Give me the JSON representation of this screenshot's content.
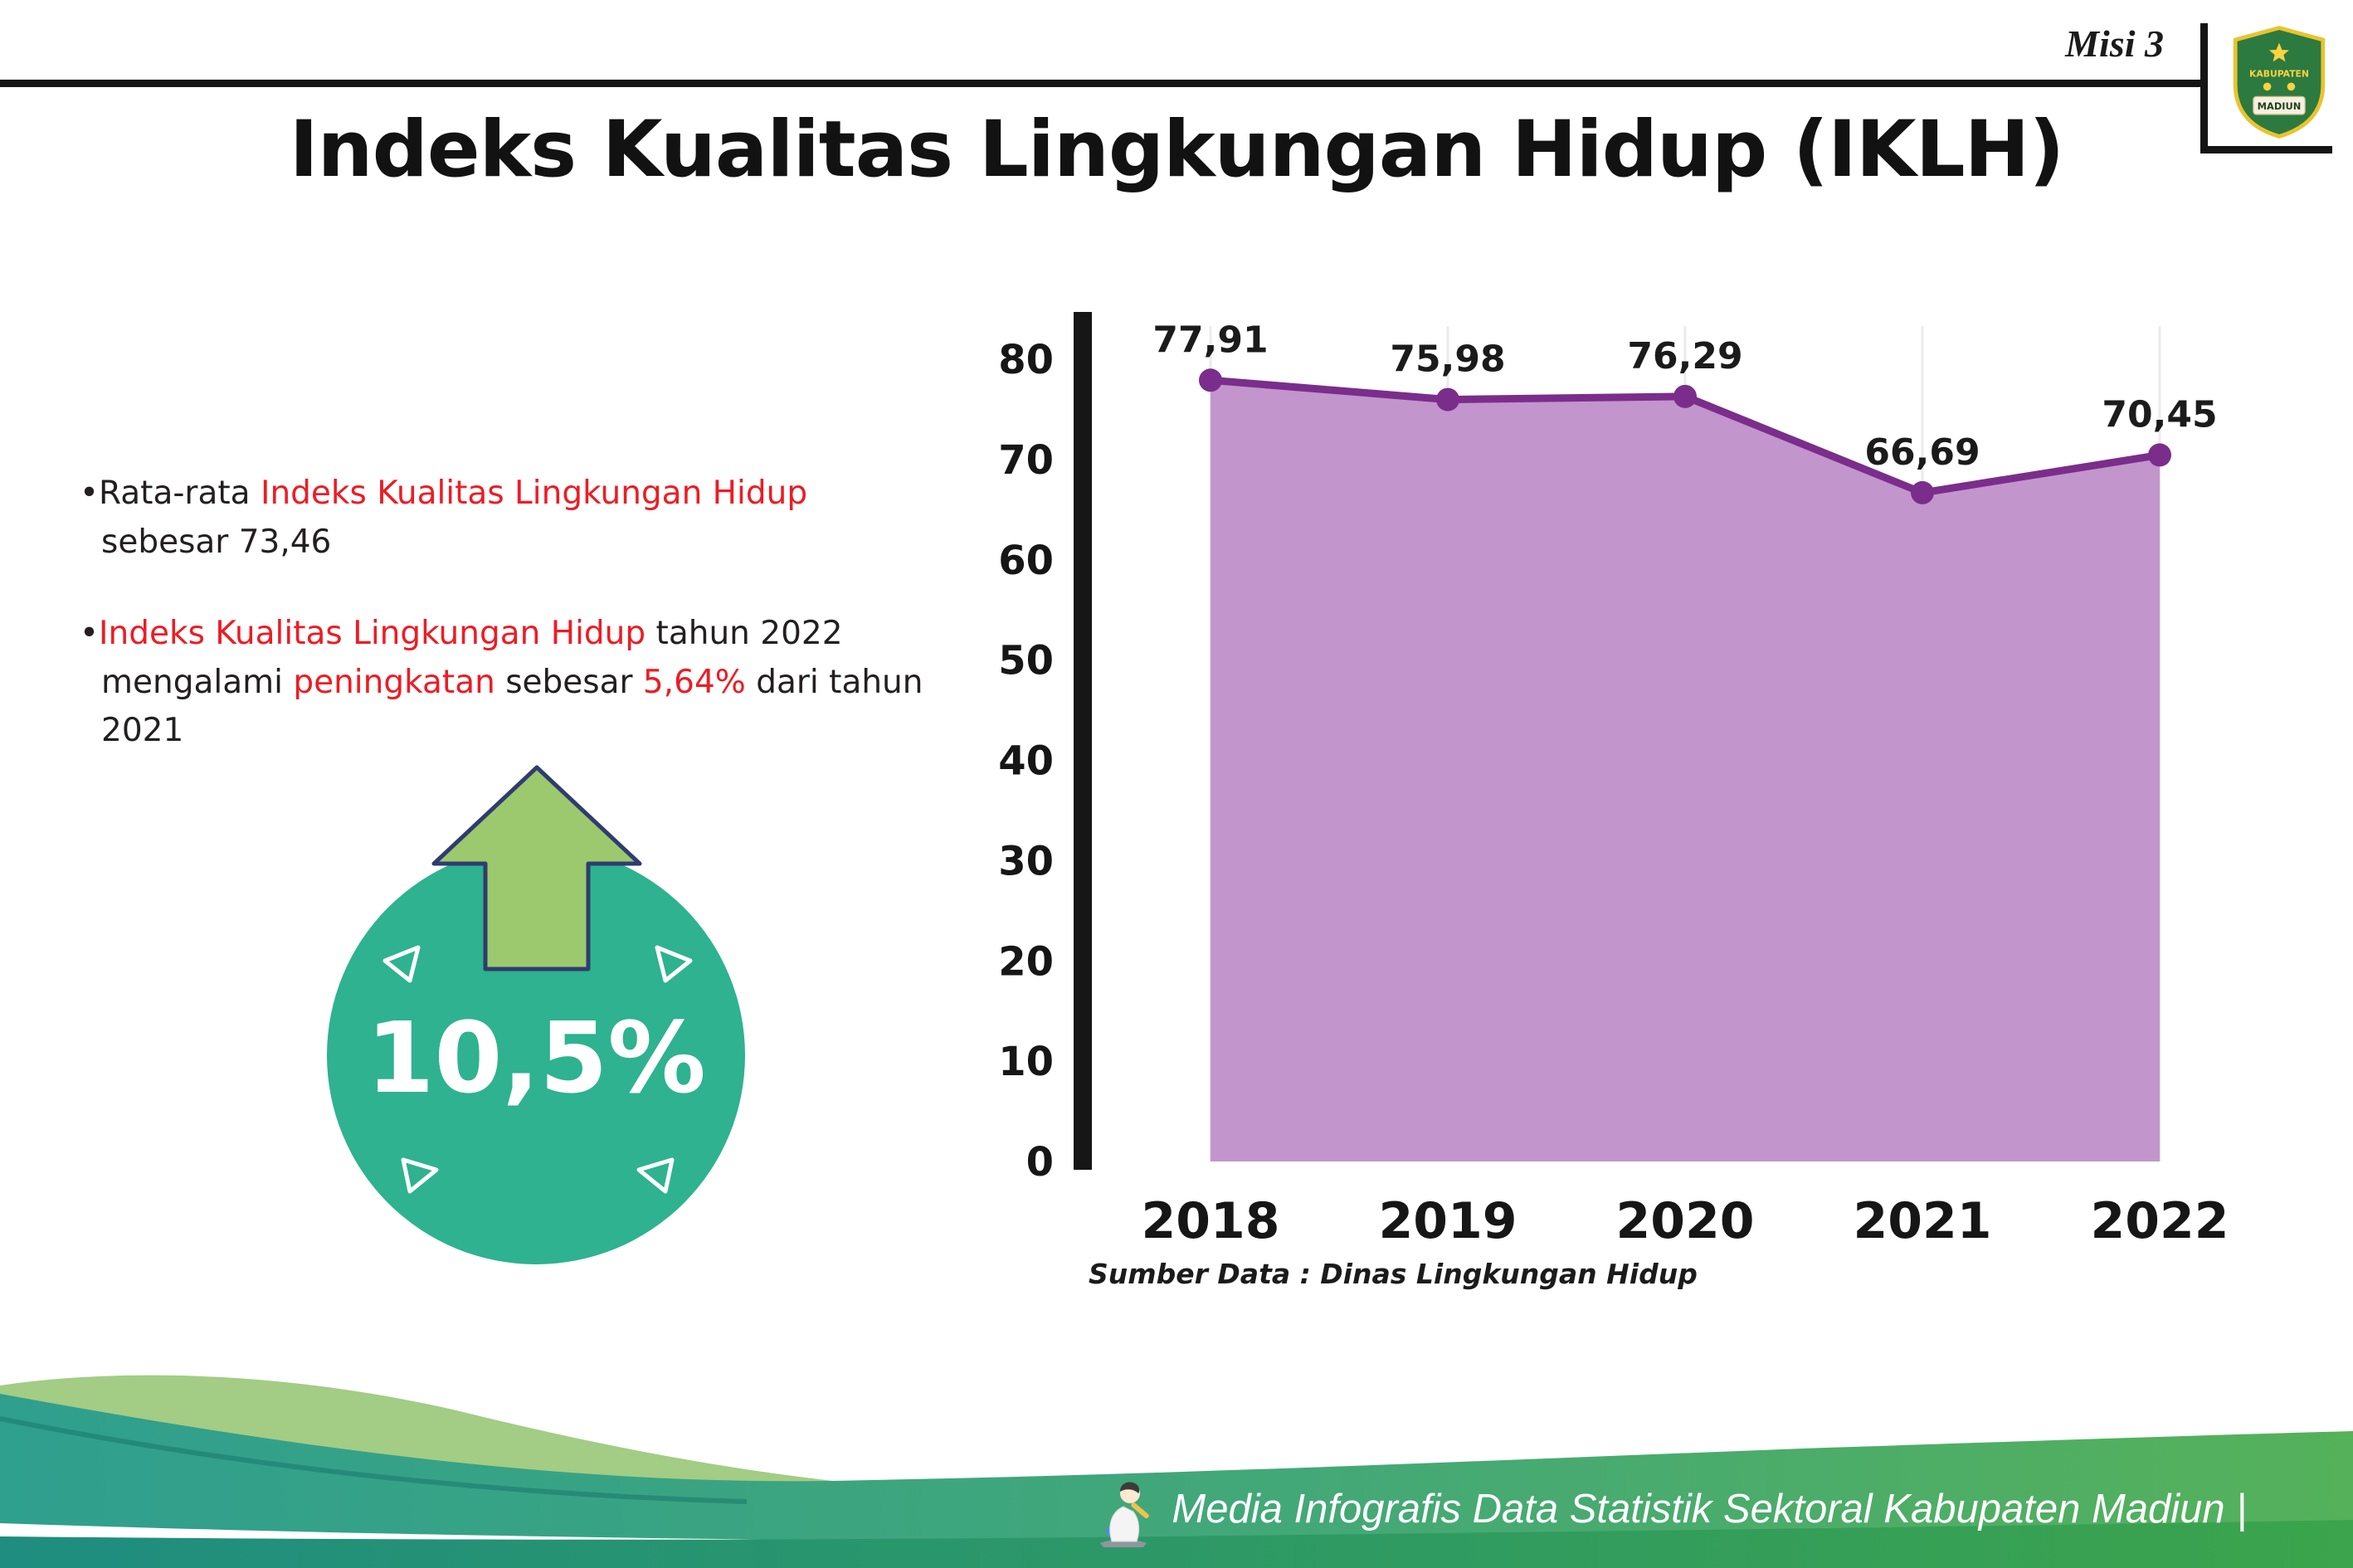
{
  "header": {
    "misi_label": "Misi 3",
    "title": "Indeks Kualitas Lingkungan Hidup (IKLH)",
    "logo": {
      "line1": "KABUPATEN",
      "line2": "MADIUN"
    }
  },
  "bullets": {
    "b1": {
      "p1": "Rata-rata ",
      "p2": "Indeks Kualitas Lingkungan Hidup",
      "p3": " sebesar 73,46"
    },
    "b2": {
      "p1": "Indeks Kualitas Lingkungan Hidup",
      "p2": " tahun 2022 mengalami ",
      "p3": "peningkatan",
      "p4": " sebesar ",
      "p5": "5,64%",
      "p6": " dari tahun 2021"
    }
  },
  "badge": {
    "value": "10,5%"
  },
  "chart_data": {
    "type": "area",
    "title": "",
    "categories": [
      "2018",
      "2019",
      "2020",
      "2021",
      "2022"
    ],
    "values": [
      77.91,
      75.98,
      76.29,
      66.69,
      70.45
    ],
    "point_labels": [
      "77,91",
      "75,98",
      "76,29",
      "66,69",
      "70,45"
    ],
    "ylim": [
      0,
      80
    ],
    "yticks": [
      0,
      10,
      20,
      30,
      40,
      50,
      60,
      70,
      80
    ],
    "xlabel": "",
    "ylabel": "",
    "grid": "faint vertical gridlines",
    "legend": "none",
    "line_color": "#7b2d8b",
    "fill_color": "#c295cd",
    "source": "Sumber Data : Dinas Lingkungan Hidup"
  },
  "footer": {
    "text": "Media Infografis Data Statistik Sektoral Kabupaten Madiun |"
  },
  "theme": {
    "red": "#ed1c24",
    "text_dark": "#231f20",
    "badge_teal": "#2eb28f",
    "arrow_green": "#9cc96e",
    "arrow_outline": "#2e3d6e",
    "footer_teal": "#2f9f8e",
    "footer_green": "#55b15a",
    "strip_teal": "#1f8d80",
    "strip_green": "#3ba44c",
    "wave_light_green": "#a3cc85"
  }
}
